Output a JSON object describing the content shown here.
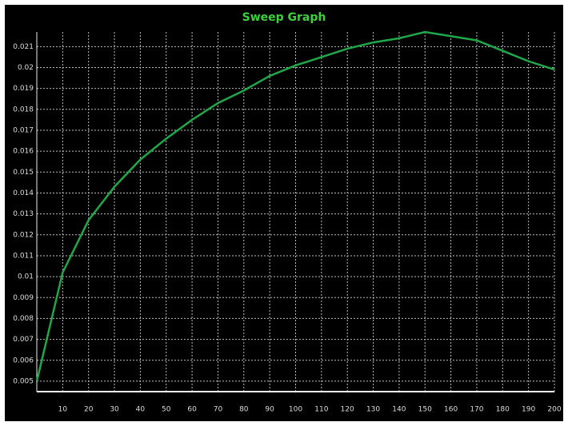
{
  "chart_data": {
    "type": "line",
    "title": "Sweep Graph",
    "x": [
      0,
      10,
      20,
      30,
      40,
      50,
      60,
      70,
      80,
      90,
      100,
      110,
      120,
      130,
      140,
      150,
      160,
      170,
      180,
      190,
      200
    ],
    "series": [
      {
        "color": "#1fa84a",
        "values": [
          0.005,
          0.0102,
          0.0127,
          0.0143,
          0.0156,
          0.0166,
          0.0175,
          0.0183,
          0.0189,
          0.0196,
          0.0201,
          0.0205,
          0.0209,
          0.0212,
          0.0214,
          0.0217,
          0.0215,
          0.0213,
          0.0208,
          0.0203,
          0.0199
        ]
      }
    ],
    "xlim": [
      0,
      200
    ],
    "xticks": [
      10,
      20,
      30,
      40,
      50,
      60,
      70,
      80,
      90,
      100,
      110,
      120,
      130,
      140,
      150,
      160,
      170,
      180,
      190,
      200
    ],
    "ylim": [
      0.0045,
      0.0217
    ],
    "yticks": [
      0.005,
      0.006,
      0.007,
      0.008,
      0.009,
      0.01,
      0.011,
      0.012,
      0.013,
      0.014,
      0.015,
      0.016,
      0.017,
      0.018,
      0.019,
      0.02,
      0.021
    ],
    "grid": true
  }
}
